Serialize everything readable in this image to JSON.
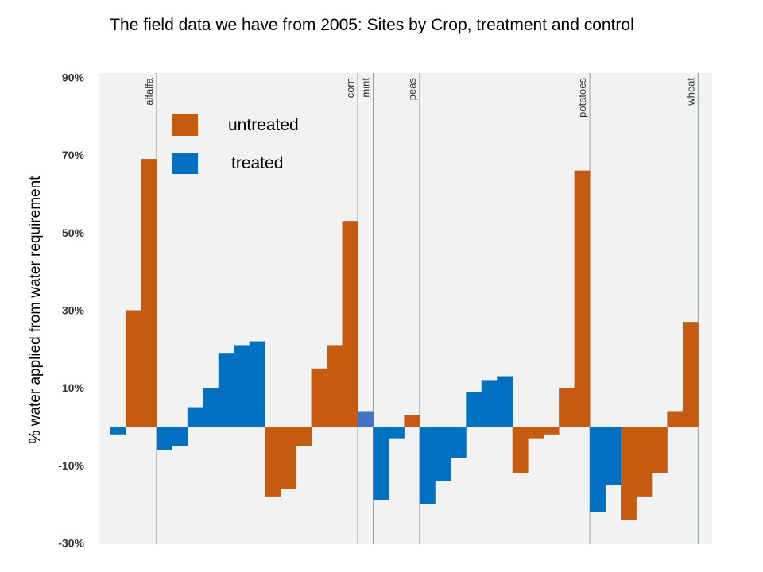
{
  "chart_data": {
    "type": "bar",
    "title": "The field data we have from 2005: Sites by Crop, treatment and control",
    "xlabel": "",
    "ylabel": "% water applied from water requirement",
    "ylim": [
      -30,
      90
    ],
    "yticks": [
      90,
      70,
      50,
      30,
      10,
      -10,
      -30
    ],
    "ytick_labels": [
      "90%",
      "70%",
      "50%",
      "30%",
      "10%",
      "-10%",
      "-30%"
    ],
    "grid": false,
    "legend_position": "top-left",
    "colors": {
      "untreated": "#C55A11",
      "treated": "#0070C0",
      "mint_treated": "#4472C4",
      "crop_divider": "#8fa39b",
      "plot_bg": "#f2f2f2"
    },
    "series": [
      {
        "name": "untreated",
        "color": "#C55A11"
      },
      {
        "name": "treated",
        "color": "#0070C0"
      }
    ],
    "crops": [
      "alfalfa",
      "corn",
      "mint",
      "peas",
      "potatoes",
      "wheat"
    ],
    "values": [
      {
        "crop": "alfalfa",
        "treatment": "treated",
        "value": -2
      },
      {
        "crop": "alfalfa",
        "treatment": "untreated",
        "value": 30
      },
      {
        "crop": "alfalfa",
        "treatment": "untreated",
        "value": 69
      },
      {
        "crop": "corn",
        "treatment": "treated",
        "value": -6
      },
      {
        "crop": "corn",
        "treatment": "treated",
        "value": -5
      },
      {
        "crop": "corn",
        "treatment": "treated",
        "value": 5
      },
      {
        "crop": "corn",
        "treatment": "treated",
        "value": 10
      },
      {
        "crop": "corn",
        "treatment": "treated",
        "value": 19
      },
      {
        "crop": "corn",
        "treatment": "treated",
        "value": 21
      },
      {
        "crop": "corn",
        "treatment": "treated",
        "value": 22
      },
      {
        "crop": "corn",
        "treatment": "untreated",
        "value": -18
      },
      {
        "crop": "corn",
        "treatment": "untreated",
        "value": -16
      },
      {
        "crop": "corn",
        "treatment": "untreated",
        "value": -5
      },
      {
        "crop": "corn",
        "treatment": "untreated",
        "value": 15
      },
      {
        "crop": "corn",
        "treatment": "untreated",
        "value": 21
      },
      {
        "crop": "corn",
        "treatment": "untreated",
        "value": 53
      },
      {
        "crop": "mint",
        "treatment": "treated",
        "value": 4
      },
      {
        "crop": "peas",
        "treatment": "treated",
        "value": -19
      },
      {
        "crop": "peas",
        "treatment": "treated",
        "value": -3
      },
      {
        "crop": "peas",
        "treatment": "untreated",
        "value": 3
      },
      {
        "crop": "potatoes",
        "treatment": "treated",
        "value": -20
      },
      {
        "crop": "potatoes",
        "treatment": "treated",
        "value": -14
      },
      {
        "crop": "potatoes",
        "treatment": "treated",
        "value": -8
      },
      {
        "crop": "potatoes",
        "treatment": "treated",
        "value": 9
      },
      {
        "crop": "potatoes",
        "treatment": "treated",
        "value": 12
      },
      {
        "crop": "potatoes",
        "treatment": "treated",
        "value": 13
      },
      {
        "crop": "potatoes",
        "treatment": "untreated",
        "value": -12
      },
      {
        "crop": "potatoes",
        "treatment": "untreated",
        "value": -3
      },
      {
        "crop": "potatoes",
        "treatment": "untreated",
        "value": -2
      },
      {
        "crop": "potatoes",
        "treatment": "untreated",
        "value": 10
      },
      {
        "crop": "potatoes",
        "treatment": "untreated",
        "value": 66
      },
      {
        "crop": "wheat",
        "treatment": "treated",
        "value": -22
      },
      {
        "crop": "wheat",
        "treatment": "treated",
        "value": -15
      },
      {
        "crop": "wheat",
        "treatment": "untreated",
        "value": -24
      },
      {
        "crop": "wheat",
        "treatment": "untreated",
        "value": -18
      },
      {
        "crop": "wheat",
        "treatment": "untreated",
        "value": -12
      },
      {
        "crop": "wheat",
        "treatment": "untreated",
        "value": 4
      },
      {
        "crop": "wheat",
        "treatment": "untreated",
        "value": 27
      }
    ]
  },
  "legend": {
    "untreated_label": "untreated",
    "treated_label": "treated"
  }
}
